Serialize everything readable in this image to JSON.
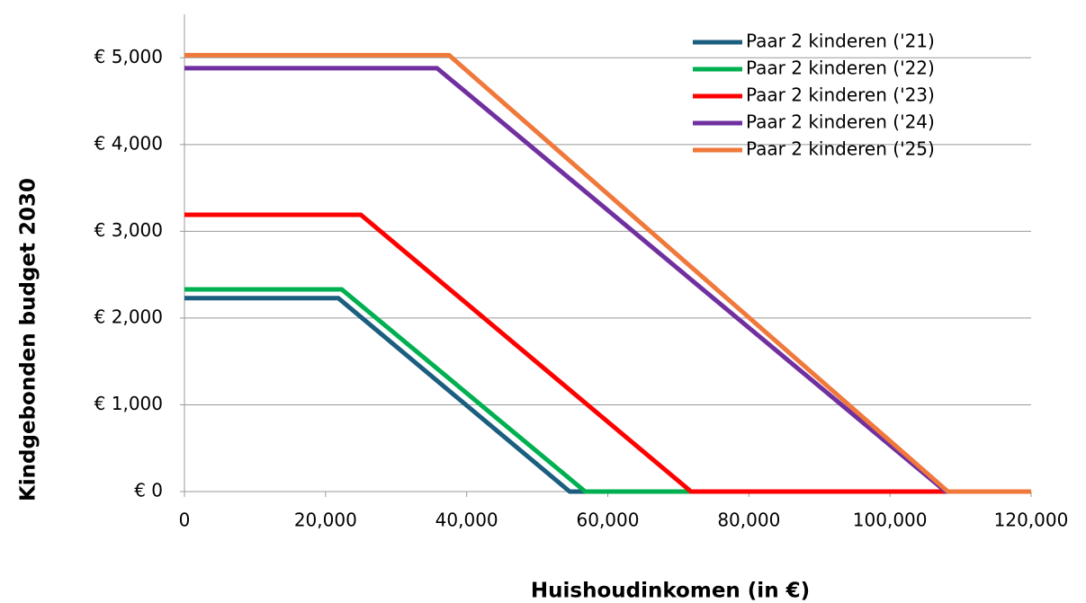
{
  "chart_data": {
    "type": "line",
    "xlabel": "Huishoudinkomen (in €)",
    "ylabel": "Kindgebonden budget 2030",
    "xlim": [
      0,
      120000
    ],
    "ylim": [
      0,
      5500
    ],
    "xticks": [
      0,
      {
        "value": 20000,
        "label": "20,000"
      },
      {
        "value": 40000,
        "label": "40,000"
      },
      {
        "value": 60000,
        "label": "60,000"
      },
      {
        "value": 80000,
        "label": "80,000"
      },
      {
        "value": 100000,
        "label": "100,000"
      },
      {
        "value": 120000,
        "label": "120,000"
      }
    ],
    "yticks": [
      {
        "value": 0,
        "label": "€ 0"
      },
      {
        "value": 1000,
        "label": "€ 1,000"
      },
      {
        "value": 2000,
        "label": "€ 2,000"
      },
      {
        "value": 3000,
        "label": "€ 3,000"
      },
      {
        "value": 4000,
        "label": "€ 4,000"
      },
      {
        "value": 5000,
        "label": "€ 5,000"
      }
    ],
    "grid": true,
    "legend": "upper right",
    "series": [
      {
        "name": "Paar 2 kinderen ('21)",
        "color": "#1b5e80",
        "x": [
          0,
          21800,
          54600,
          120000
        ],
        "values": [
          2230,
          2230,
          0,
          0
        ]
      },
      {
        "name": "Paar 2 kinderen ('22)",
        "color": "#00b050",
        "x": [
          0,
          22300,
          56800,
          120000
        ],
        "values": [
          2330,
          2330,
          0,
          0
        ]
      },
      {
        "name": "Paar 2 kinderen ('23)",
        "color": "#ff0000",
        "x": [
          0,
          25000,
          71800,
          120000
        ],
        "values": [
          3190,
          3190,
          0,
          0
        ]
      },
      {
        "name": "Paar 2 kinderen ('24)",
        "color": "#7030a0",
        "x": [
          0,
          35800,
          107900,
          120000
        ],
        "values": [
          4880,
          4880,
          0,
          0
        ]
      },
      {
        "name": "Paar 2 kinderen ('25)",
        "color": "#f0783a",
        "x": [
          0,
          37500,
          108200,
          120000
        ],
        "values": [
          5030,
          5030,
          0,
          0
        ]
      }
    ]
  }
}
